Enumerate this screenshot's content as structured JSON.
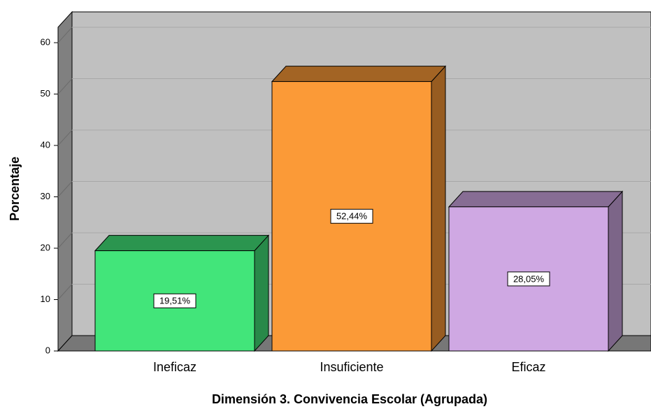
{
  "chart_data": {
    "type": "bar3d",
    "xlabel": "Dimensión 3. Convivencia Escolar (Agrupada)",
    "ylabel": "Porcentaje",
    "categories": [
      "Ineficaz",
      "Insuficiente",
      "Eficaz"
    ],
    "values": [
      19.51,
      52.44,
      28.05
    ],
    "value_labels": [
      "19,51%",
      "52,44%",
      "28,05%"
    ],
    "colors": [
      "#42e57a",
      "#fb9a37",
      "#cfa8e3"
    ],
    "ylim": [
      0,
      63
    ],
    "yticks": [
      0,
      10,
      20,
      30,
      40,
      50,
      60
    ],
    "grid": true
  }
}
